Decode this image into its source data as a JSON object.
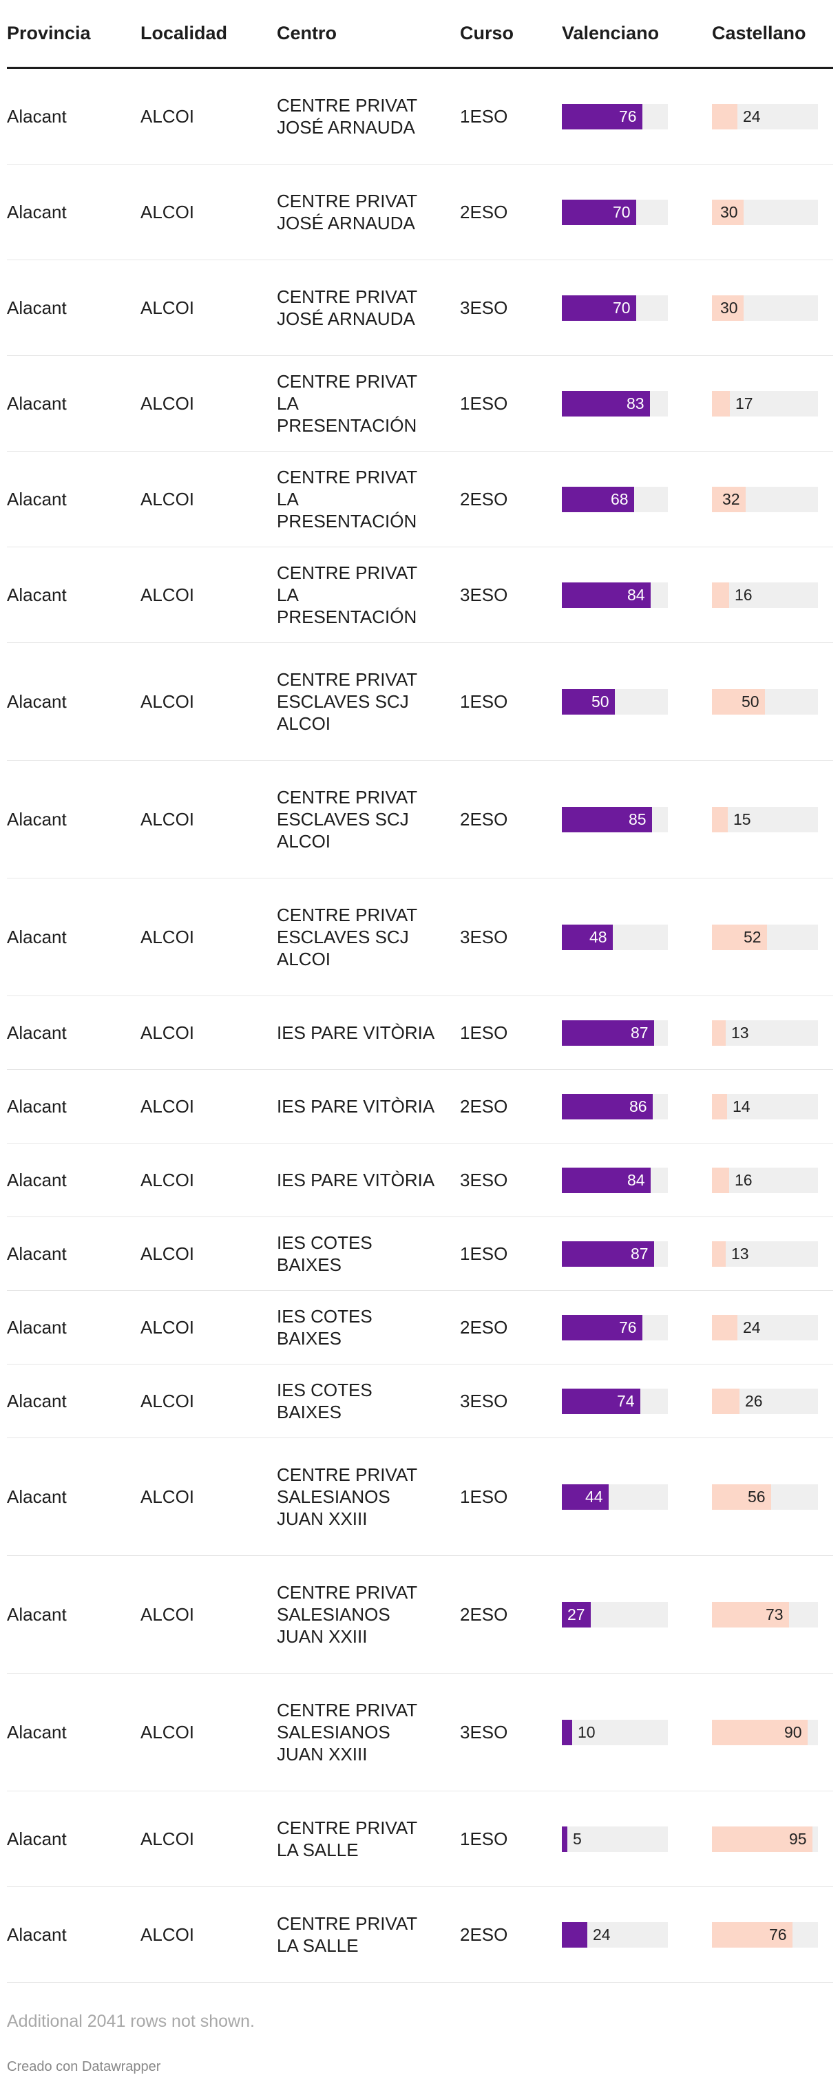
{
  "headers": {
    "provincia": "Provincia",
    "localidad": "Localidad",
    "centro": "Centro",
    "curso": "Curso",
    "valenciano": "Valenciano",
    "castellano": "Castellano"
  },
  "colors": {
    "valenciano": "#6d1a9c",
    "castellano": "#fcd7c8",
    "track": "#efefef"
  },
  "chart_data": {
    "type": "table",
    "columns": [
      "Provincia",
      "Localidad",
      "Centro",
      "Curso",
      "Valenciano",
      "Castellano"
    ],
    "bar_max": 100,
    "rows": [
      {
        "provincia": "Alacant",
        "localidad": "ALCOI",
        "centro": "CENTRE PRIVAT JOSÉ ARNAUDA",
        "curso": "1ESO",
        "valenciano": 76,
        "castellano": 24
      },
      {
        "provincia": "Alacant",
        "localidad": "ALCOI",
        "centro": "CENTRE PRIVAT JOSÉ ARNAUDA",
        "curso": "2ESO",
        "valenciano": 70,
        "castellano": 30
      },
      {
        "provincia": "Alacant",
        "localidad": "ALCOI",
        "centro": "CENTRE PRIVAT JOSÉ ARNAUDA",
        "curso": "3ESO",
        "valenciano": 70,
        "castellano": 30
      },
      {
        "provincia": "Alacant",
        "localidad": "ALCOI",
        "centro": "CENTRE PRIVAT LA PRESENTACIÓN",
        "curso": "1ESO",
        "valenciano": 83,
        "castellano": 17
      },
      {
        "provincia": "Alacant",
        "localidad": "ALCOI",
        "centro": "CENTRE PRIVAT LA PRESENTACIÓN",
        "curso": "2ESO",
        "valenciano": 68,
        "castellano": 32
      },
      {
        "provincia": "Alacant",
        "localidad": "ALCOI",
        "centro": "CENTRE PRIVAT LA PRESENTACIÓN",
        "curso": "3ESO",
        "valenciano": 84,
        "castellano": 16
      },
      {
        "provincia": "Alacant",
        "localidad": "ALCOI",
        "centro": "CENTRE PRIVAT ESCLAVES SCJ ALCOI",
        "curso": "1ESO",
        "valenciano": 50,
        "castellano": 50
      },
      {
        "provincia": "Alacant",
        "localidad": "ALCOI",
        "centro": "CENTRE PRIVAT ESCLAVES SCJ ALCOI",
        "curso": "2ESO",
        "valenciano": 85,
        "castellano": 15
      },
      {
        "provincia": "Alacant",
        "localidad": "ALCOI",
        "centro": "CENTRE PRIVAT ESCLAVES SCJ ALCOI",
        "curso": "3ESO",
        "valenciano": 48,
        "castellano": 52
      },
      {
        "provincia": "Alacant",
        "localidad": "ALCOI",
        "centro": "IES PARE VITÒRIA",
        "curso": "1ESO",
        "valenciano": 87,
        "castellano": 13
      },
      {
        "provincia": "Alacant",
        "localidad": "ALCOI",
        "centro": "IES PARE VITÒRIA",
        "curso": "2ESO",
        "valenciano": 86,
        "castellano": 14
      },
      {
        "provincia": "Alacant",
        "localidad": "ALCOI",
        "centro": "IES PARE VITÒRIA",
        "curso": "3ESO",
        "valenciano": 84,
        "castellano": 16
      },
      {
        "provincia": "Alacant",
        "localidad": "ALCOI",
        "centro": "IES COTES BAIXES",
        "curso": "1ESO",
        "valenciano": 87,
        "castellano": 13
      },
      {
        "provincia": "Alacant",
        "localidad": "ALCOI",
        "centro": "IES COTES BAIXES",
        "curso": "2ESO",
        "valenciano": 76,
        "castellano": 24
      },
      {
        "provincia": "Alacant",
        "localidad": "ALCOI",
        "centro": "IES COTES BAIXES",
        "curso": "3ESO",
        "valenciano": 74,
        "castellano": 26
      },
      {
        "provincia": "Alacant",
        "localidad": "ALCOI",
        "centro": "CENTRE PRIVAT SALESIANOS JUAN XXIII",
        "curso": "1ESO",
        "valenciano": 44,
        "castellano": 56
      },
      {
        "provincia": "Alacant",
        "localidad": "ALCOI",
        "centro": "CENTRE PRIVAT SALESIANOS JUAN XXIII",
        "curso": "2ESO",
        "valenciano": 27,
        "castellano": 73
      },
      {
        "provincia": "Alacant",
        "localidad": "ALCOI",
        "centro": "CENTRE PRIVAT SALESIANOS JUAN XXIII",
        "curso": "3ESO",
        "valenciano": 10,
        "castellano": 90
      },
      {
        "provincia": "Alacant",
        "localidad": "ALCOI",
        "centro": "CENTRE PRIVAT LA SALLE",
        "curso": "1ESO",
        "valenciano": 5,
        "castellano": 95
      },
      {
        "provincia": "Alacant",
        "localidad": "ALCOI",
        "centro": "CENTRE PRIVAT LA SALLE",
        "curso": "2ESO",
        "valenciano": 24,
        "castellano": 76
      }
    ]
  },
  "footer": {
    "note": "Additional 2041 rows not shown.",
    "credit": "Creado con Datawrapper"
  }
}
